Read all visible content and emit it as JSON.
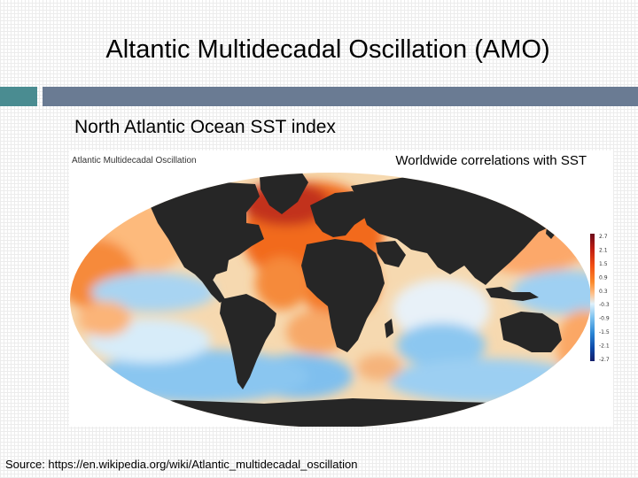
{
  "slide": {
    "title": "Altantic Multidecadal Oscillation (AMO)",
    "subtitle": "North Atlantic Ocean  SST index",
    "source": "Source: https://en.wikipedia.org/wiki/Atlantic_multidecadal_oscillation"
  },
  "figure": {
    "title": "Atlantic Multidecadal Oscillation",
    "caption": "Worldwide correlations with SST",
    "colorbar": {
      "ticks": [
        "2.7",
        "2.1",
        "1.5",
        "0.9",
        "0.3",
        "-0.3",
        "-0.9",
        "-1.5",
        "-2.1",
        "-2.7"
      ],
      "colors": [
        "#6b0a1a",
        "#c01d12",
        "#f24f13",
        "#fb8a2c",
        "#fec08a",
        "#dff1fb",
        "#7cc1ef",
        "#2b87d6",
        "#0c48a8",
        "#141f6b"
      ]
    }
  },
  "colors": {
    "land": "#262626",
    "ocean_warm": "#f47a2a",
    "ocean_hot": "#b3261e",
    "ocean_cool": "#6fb6ea",
    "ocean_neutral": "#f4ead6",
    "accent_teal": "#4a8c91",
    "accent_slate": "#6a7b93"
  }
}
